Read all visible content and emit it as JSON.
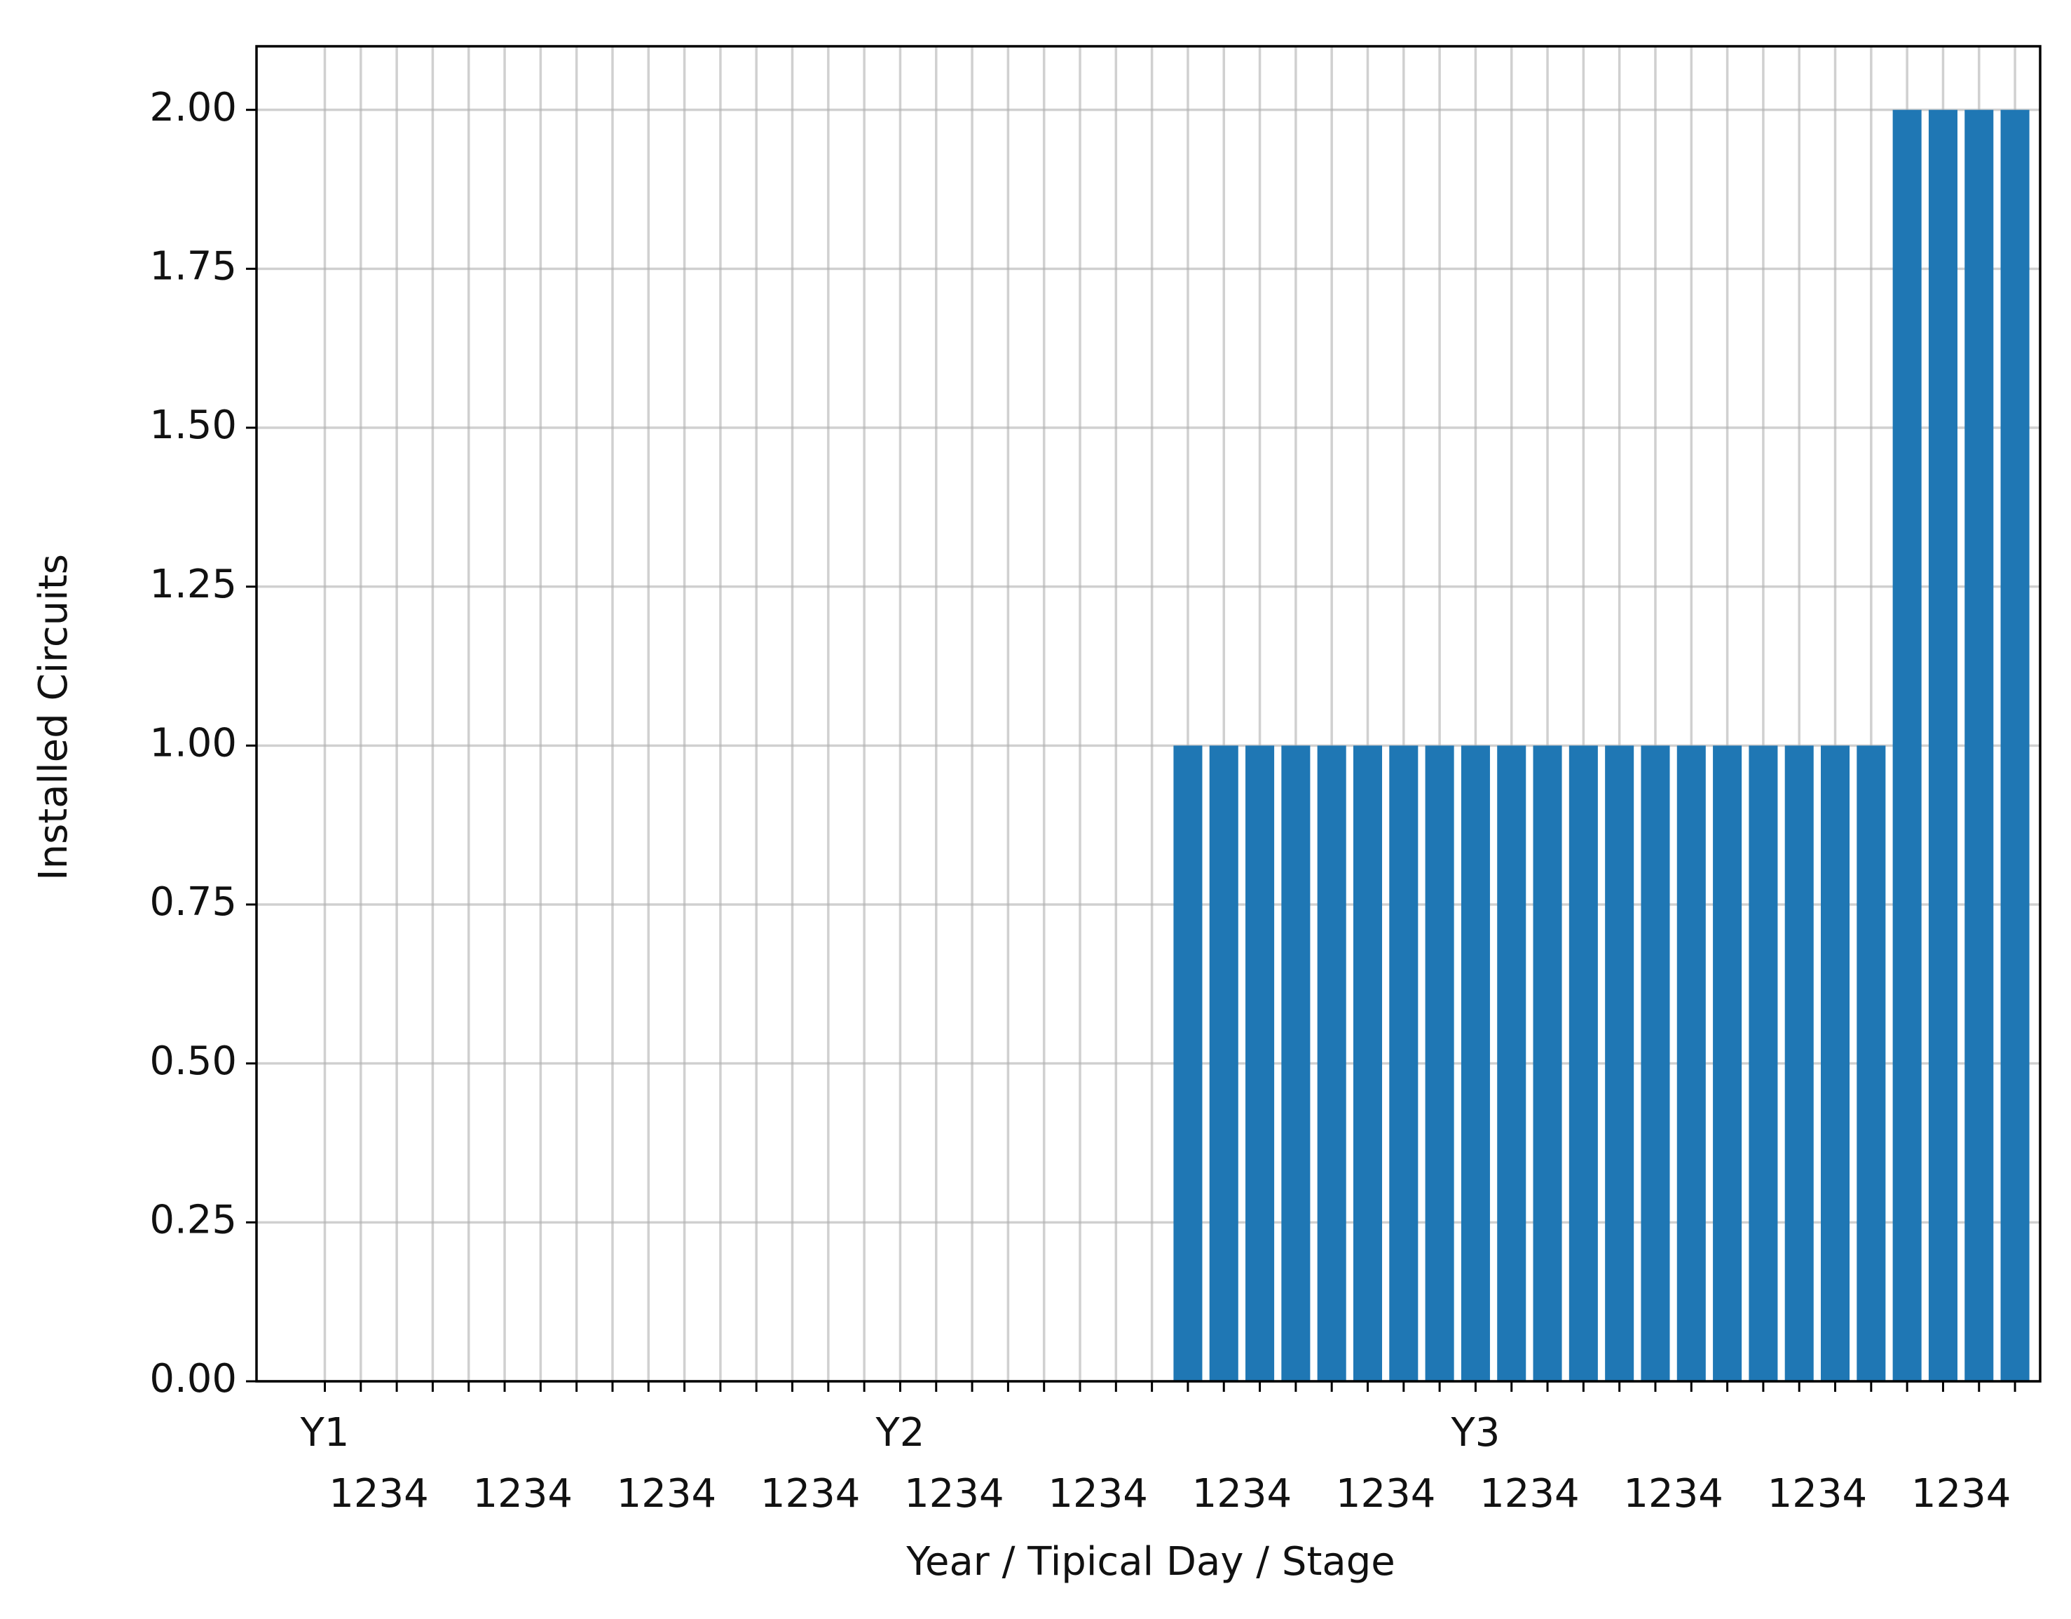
{
  "chart_data": {
    "type": "bar",
    "x_label": "Year / Tipical Day / Stage",
    "y_label": "Installed Circuits",
    "categories": [
      "Y1",
      null,
      null,
      null,
      null,
      null,
      null,
      null,
      null,
      null,
      null,
      null,
      null,
      null,
      null,
      null,
      "Y2",
      null,
      null,
      null,
      null,
      null,
      null,
      null,
      null,
      null,
      null,
      null,
      null,
      null,
      null,
      null,
      "Y3",
      null,
      null,
      null,
      null,
      null,
      null,
      null,
      null,
      null,
      null,
      null,
      null,
      null,
      null,
      null
    ],
    "stage_labels": [
      "1234",
      "1234",
      "1234",
      "1234",
      "1234",
      "1234",
      "1234",
      "1234",
      "1234",
      "1234",
      "1234",
      "1234"
    ],
    "values": [
      0,
      0,
      0,
      0,
      0,
      0,
      0,
      0,
      0,
      0,
      0,
      0,
      0,
      0,
      0,
      0,
      0,
      0,
      0,
      0,
      0,
      0,
      0,
      0,
      1,
      1,
      1,
      1,
      1,
      1,
      1,
      1,
      1,
      1,
      1,
      1,
      1,
      1,
      1,
      1,
      1,
      1,
      1,
      1,
      2,
      2,
      2,
      2
    ],
    "color": "#1f77b4",
    "xlim": [
      -1.9,
      47.7
    ],
    "ylim": [
      0,
      2.1
    ],
    "yticks": [
      {
        "value": 0,
        "label": "0.00"
      },
      {
        "value": 0.25,
        "label": "0.25"
      },
      {
        "value": 0.5,
        "label": "0.50"
      },
      {
        "value": 0.75,
        "label": "0.75"
      },
      {
        "value": 1,
        "label": "1.00"
      },
      {
        "value": 1.25,
        "label": "1.25"
      },
      {
        "value": 1.5,
        "label": "1.50"
      },
      {
        "value": 1.75,
        "label": "1.75"
      },
      {
        "value": 2,
        "label": "2.00"
      }
    ],
    "grid": true
  }
}
